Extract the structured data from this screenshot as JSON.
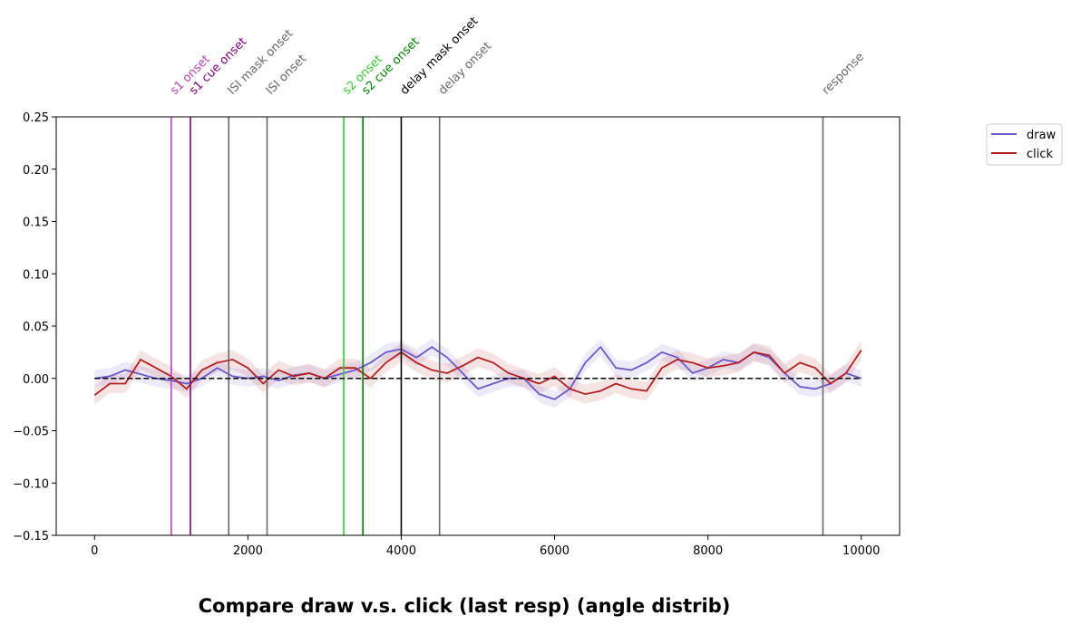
{
  "chart_data": {
    "type": "line",
    "title": "Compare draw v.s. click (last resp) (angle distrib)",
    "x": [
      0,
      200,
      400,
      600,
      800,
      1000,
      1200,
      1400,
      1600,
      1800,
      2000,
      2200,
      2400,
      2600,
      2800,
      3000,
      3200,
      3400,
      3600,
      3800,
      4000,
      4200,
      4400,
      4600,
      4800,
      5000,
      5200,
      5400,
      5600,
      5800,
      6000,
      6200,
      6400,
      6600,
      6800,
      7000,
      7200,
      7400,
      7600,
      7800,
      8000,
      8200,
      8400,
      8600,
      8800,
      9000,
      9200,
      9400,
      9600,
      9800,
      10000
    ],
    "series": [
      {
        "name": "draw",
        "color": "#6a5acd",
        "values": [
          0.0,
          0.002,
          0.008,
          0.004,
          0.0,
          -0.002,
          -0.005,
          0.0,
          0.01,
          0.002,
          0.0,
          0.002,
          -0.002,
          0.003,
          0.005,
          0.0,
          0.004,
          0.008,
          0.015,
          0.025,
          0.028,
          0.02,
          0.03,
          0.02,
          0.005,
          -0.01,
          -0.005,
          0.0,
          0.0,
          -0.015,
          -0.02,
          -0.01,
          0.015,
          0.03,
          0.01,
          0.008,
          0.015,
          0.025,
          0.02,
          0.005,
          0.01,
          0.018,
          0.015,
          0.025,
          0.02,
          0.005,
          -0.008,
          -0.01,
          -0.005,
          0.005,
          0.0
        ],
        "error": [
          0.008,
          0.008,
          0.008,
          0.008,
          0.008,
          0.008,
          0.008,
          0.008,
          0.008,
          0.008,
          0.008,
          0.008,
          0.008,
          0.008,
          0.008,
          0.008,
          0.008,
          0.008,
          0.008,
          0.008,
          0.008,
          0.008,
          0.008,
          0.008,
          0.008,
          0.008,
          0.008,
          0.008,
          0.008,
          0.008,
          0.008,
          0.008,
          0.008,
          0.008,
          0.008,
          0.008,
          0.008,
          0.008,
          0.008,
          0.008,
          0.008,
          0.008,
          0.008,
          0.008,
          0.008,
          0.008,
          0.008,
          0.008,
          0.008,
          0.008,
          0.008
        ]
      },
      {
        "name": "click",
        "color": "#b22222",
        "values": [
          -0.016,
          -0.005,
          -0.005,
          0.018,
          0.01,
          0.002,
          -0.01,
          0.008,
          0.015,
          0.018,
          0.01,
          -0.005,
          0.008,
          0.002,
          0.005,
          0.0,
          0.01,
          0.01,
          0.0,
          0.015,
          0.025,
          0.015,
          0.008,
          0.005,
          0.012,
          0.02,
          0.015,
          0.005,
          0.0,
          -0.005,
          0.002,
          -0.01,
          -0.015,
          -0.012,
          -0.005,
          -0.01,
          -0.012,
          0.01,
          0.018,
          0.015,
          0.01,
          0.012,
          0.015,
          0.025,
          0.022,
          0.005,
          0.015,
          0.01,
          -0.005,
          0.005,
          0.027
        ],
        "error": [
          0.009,
          0.009,
          0.009,
          0.009,
          0.009,
          0.009,
          0.009,
          0.009,
          0.009,
          0.009,
          0.009,
          0.009,
          0.009,
          0.009,
          0.009,
          0.009,
          0.009,
          0.009,
          0.009,
          0.009,
          0.009,
          0.009,
          0.009,
          0.009,
          0.009,
          0.009,
          0.009,
          0.009,
          0.009,
          0.009,
          0.009,
          0.009,
          0.009,
          0.009,
          0.009,
          0.009,
          0.009,
          0.009,
          0.009,
          0.009,
          0.009,
          0.009,
          0.009,
          0.009,
          0.009,
          0.009,
          0.009,
          0.009,
          0.009,
          0.009,
          0.009
        ]
      }
    ],
    "events": [
      {
        "x": 1000,
        "label": "s1 onset",
        "color": "#bf40bf"
      },
      {
        "x": 1250,
        "label": "s1 cue onset",
        "color": "#800080"
      },
      {
        "x": 1750,
        "label": "ISI mask onset",
        "color": "#696969"
      },
      {
        "x": 2250,
        "label": "ISI onset",
        "color": "#696969"
      },
      {
        "x": 3250,
        "label": "s2 onset",
        "color": "#32cd32"
      },
      {
        "x": 3500,
        "label": "s2 cue onset",
        "color": "#008000"
      },
      {
        "x": 4000,
        "label": "delay mask onset",
        "color": "#000000"
      },
      {
        "x": 4500,
        "label": "delay onset",
        "color": "#696969"
      },
      {
        "x": 9500,
        "label": "response",
        "color": "#696969"
      }
    ],
    "hline": 0,
    "xlim": [
      -500,
      10500
    ],
    "ylim": [
      -0.15,
      0.25
    ],
    "xticks": [
      0,
      2000,
      4000,
      6000,
      8000,
      10000
    ],
    "yticks": [
      0.25,
      {
        "value": 0.2,
        "label": "0.20"
      },
      0.15,
      {
        "value": 0.1,
        "label": "0.10"
      },
      0.05,
      {
        "value": 0,
        "label": "0.00"
      },
      {
        "value": -0.05,
        "label": "−0.05"
      },
      {
        "value": -0.1,
        "label": "−0.10"
      },
      {
        "value": -0.15,
        "label": "−0.15"
      }
    ],
    "legend": "upper-right-outside"
  }
}
